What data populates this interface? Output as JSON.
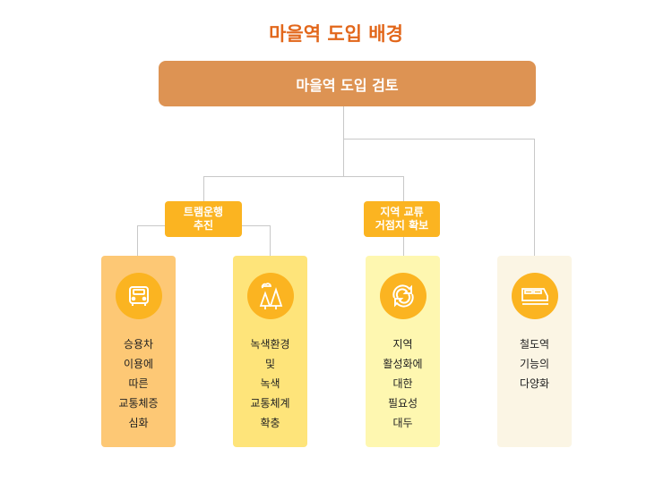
{
  "title": "마을역 도입 배경",
  "top": "마을역 도입 검토",
  "branches": [
    {
      "label": "트램운행\n추진"
    },
    {
      "label": "지역 교류\n거점지 확보"
    }
  ],
  "cards": [
    {
      "text": "승용차\n이용에\n따른\n교통체증\n심화",
      "icon": "car-icon",
      "color": "#fdc875"
    },
    {
      "text": "녹색환경\n및\n녹색\n교통체계\n확충",
      "icon": "trees-icon",
      "color": "#fee47a"
    },
    {
      "text": "지역\n활성화에\n대한\n필요성\n대두",
      "icon": "refresh-icon",
      "color": "#fef7b0"
    },
    {
      "text": "철도역\n기능의\n다양화",
      "icon": "train-icon",
      "color": "#fbf5e4"
    }
  ]
}
